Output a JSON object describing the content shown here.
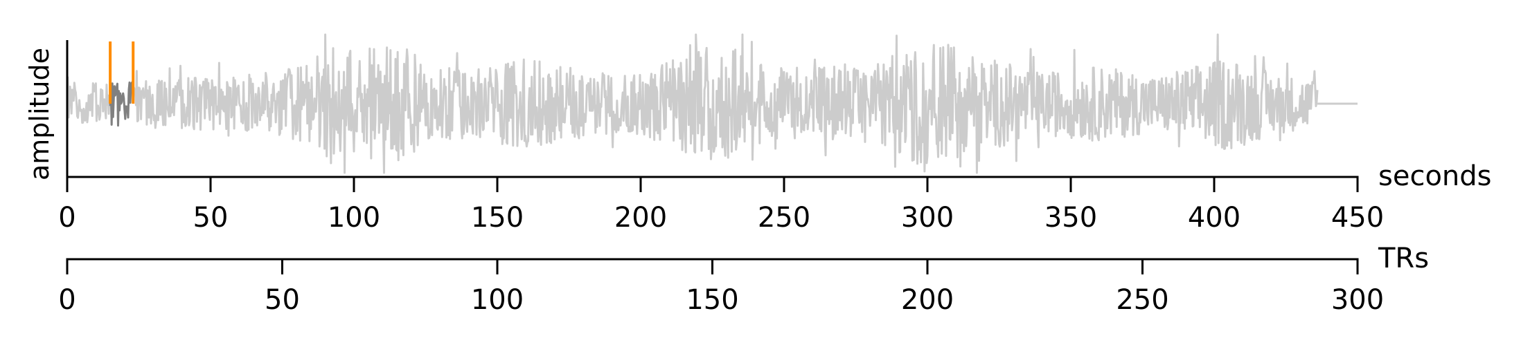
{
  "chart_data": {
    "type": "line",
    "ylabel": "amplitude",
    "x_axes": [
      {
        "label": "seconds",
        "range": [
          0,
          450
        ],
        "ticks": [
          0,
          50,
          100,
          150,
          200,
          250,
          300,
          350,
          400,
          450
        ],
        "tick_labels": [
          "0",
          "50",
          "100",
          "150",
          "200",
          "250",
          "300",
          "350",
          "400",
          "450"
        ]
      },
      {
        "label": "TRs",
        "range": [
          0,
          300
        ],
        "ticks": [
          0,
          50,
          100,
          150,
          200,
          250,
          300
        ],
        "tick_labels": [
          "0",
          "50",
          "100",
          "150",
          "200",
          "250",
          "300"
        ]
      }
    ],
    "waveform": {
      "signal_end_seconds": 436,
      "flat_line_end_seconds": 450,
      "color": "#cccccc",
      "highlight_segment": {
        "start_seconds": 15,
        "end_seconds": 23,
        "color": "#808080"
      },
      "envelope": [
        {
          "t": 0,
          "a": 0.3
        },
        {
          "t": 30,
          "a": 0.35
        },
        {
          "t": 60,
          "a": 0.4
        },
        {
          "t": 85,
          "a": 0.6
        },
        {
          "t": 90,
          "a": 0.9
        },
        {
          "t": 100,
          "a": 0.75
        },
        {
          "t": 117,
          "a": 0.9
        },
        {
          "t": 125,
          "a": 0.55
        },
        {
          "t": 140,
          "a": 0.5
        },
        {
          "t": 160,
          "a": 0.65
        },
        {
          "t": 185,
          "a": 0.45
        },
        {
          "t": 200,
          "a": 0.45
        },
        {
          "t": 228,
          "a": 0.9
        },
        {
          "t": 245,
          "a": 0.5
        },
        {
          "t": 260,
          "a": 0.6
        },
        {
          "t": 280,
          "a": 0.55
        },
        {
          "t": 300,
          "a": 0.95
        },
        {
          "t": 315,
          "a": 0.75
        },
        {
          "t": 340,
          "a": 0.45
        },
        {
          "t": 360,
          "a": 0.55
        },
        {
          "t": 380,
          "a": 0.4
        },
        {
          "t": 405,
          "a": 0.7
        },
        {
          "t": 420,
          "a": 0.45
        },
        {
          "t": 436,
          "a": 0.35
        }
      ]
    },
    "markers": [
      {
        "seconds": 15,
        "color": "#ff8c00"
      },
      {
        "seconds": 23,
        "color": "#ff8c00"
      }
    ]
  }
}
